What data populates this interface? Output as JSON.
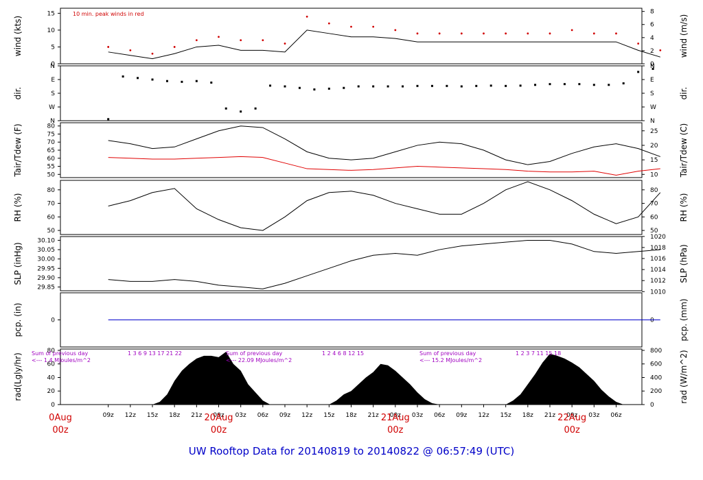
{
  "title": "UW Rooftop Data for 20140819  to  20140822 @ 06:57:49  (UTC)",
  "colors": {
    "line": "#000000",
    "peak": "#d00000",
    "dew": "#e00000",
    "precip": "#0000cc",
    "annot": "#a000c0",
    "day": "#d00000",
    "title": "#0000c8"
  },
  "x_axis": {
    "tick_labels": [
      "09z",
      "12z",
      "15z",
      "18z",
      "21z",
      "00z",
      "03z",
      "06z",
      "09z",
      "12z",
      "15z",
      "18z",
      "21z",
      "00z",
      "03z",
      "06z",
      "09z",
      "12z",
      "15z",
      "18z",
      "21z",
      "00z",
      "03z",
      "06z"
    ],
    "day_labels": [
      {
        "day": "0Aug",
        "hour": "00z"
      },
      {
        "day": "20Aug",
        "hour": "00z"
      },
      {
        "day": "21Aug",
        "hour": "00z"
      },
      {
        "day": "22Aug",
        "hour": "00z"
      }
    ]
  },
  "chart_data": [
    {
      "id": "wind",
      "type": "line",
      "ylabel_left": "wind (kts)",
      "ylabel_right": "wind (m/s)",
      "yticks_left": [
        "0",
        "5",
        "10",
        "15"
      ],
      "yticks_right": [
        "0",
        "2",
        "4",
        "6",
        "8"
      ],
      "ylim": [
        0,
        16.5
      ],
      "annotation": "10 min. peak winds in red",
      "x_hours": [
        0,
        3,
        6,
        9,
        12,
        15,
        18,
        21,
        24,
        27,
        30,
        33,
        36,
        39,
        42,
        45,
        48,
        51,
        54,
        57,
        60,
        63,
        66,
        69,
        72,
        75
      ],
      "series": [
        {
          "name": "wind",
          "values": [
            3.5,
            2.5,
            1.5,
            3,
            5,
            5.5,
            4,
            4,
            3.5,
            10,
            9,
            8,
            8,
            7.5,
            6.5,
            6.5,
            6.5,
            6.5,
            6.5,
            6.5,
            6.5,
            6.5,
            6.5,
            6.5,
            4,
            2
          ]
        },
        {
          "name": "10 min. peak winds",
          "values": [
            5,
            4,
            3,
            5,
            7,
            8,
            7,
            7,
            6,
            14,
            12,
            11,
            11,
            10,
            9,
            9,
            9,
            9,
            9,
            9,
            9,
            10,
            9,
            9,
            6,
            4
          ]
        }
      ]
    },
    {
      "id": "dir",
      "type": "scatter",
      "ylabel_left": "dir.",
      "ylabel_right": "dir.",
      "yticks_left": [
        "N",
        "E",
        "S",
        "W",
        "N"
      ],
      "yticks_right": [
        "N",
        "E",
        "S",
        "W",
        "N"
      ],
      "ylim": [
        0,
        360
      ],
      "x_hours": [
        0,
        2,
        4,
        6,
        8,
        10,
        12,
        14,
        16,
        18,
        20,
        22,
        24,
        26,
        28,
        30,
        32,
        34,
        36,
        38,
        40,
        42,
        44,
        46,
        48,
        50,
        52,
        54,
        56,
        58,
        60,
        62,
        64,
        66,
        68,
        70,
        72,
        74
      ],
      "values": [
        10,
        290,
        280,
        270,
        260,
        255,
        260,
        250,
        80,
        60,
        80,
        230,
        225,
        215,
        205,
        210,
        215,
        225,
        225,
        225,
        225,
        228,
        228,
        228,
        225,
        228,
        230,
        228,
        230,
        235,
        240,
        240,
        240,
        235,
        235,
        245,
        320,
        340
      ]
    },
    {
      "id": "temp",
      "type": "line",
      "ylabel_left": "Tair/Tdew (F)",
      "ylabel_right": "Tair/Tdew (C)",
      "yticks_left": [
        "50",
        "55",
        "60",
        "65",
        "70",
        "75",
        "80"
      ],
      "yticks_right": [
        "10",
        "15",
        "20",
        "25"
      ],
      "ylim": [
        48,
        82
      ],
      "x_hours": [
        0,
        3,
        6,
        9,
        12,
        15,
        18,
        21,
        24,
        27,
        30,
        33,
        36,
        39,
        42,
        45,
        48,
        51,
        54,
        57,
        60,
        63,
        66,
        69,
        72,
        75
      ],
      "series": [
        {
          "name": "Tair",
          "values": [
            71,
            69,
            66,
            67,
            72,
            77,
            80,
            79,
            72,
            64,
            60,
            59,
            60,
            64,
            68,
            70,
            69,
            65,
            59,
            56,
            58,
            63,
            67,
            69,
            66,
            61
          ]
        },
        {
          "name": "Tdew",
          "values": [
            60.5,
            60,
            59.5,
            59.5,
            60,
            60.5,
            61,
            60.5,
            57,
            53.5,
            53,
            52.5,
            53,
            54,
            55,
            54.5,
            54,
            53.5,
            53,
            52,
            51.5,
            51.5,
            52,
            49.5,
            52,
            53.5
          ]
        }
      ]
    },
    {
      "id": "rh",
      "type": "line",
      "ylabel_left": "RH (%)",
      "ylabel_right": "RH (%)",
      "yticks_left": [
        "50",
        "60",
        "70",
        "80"
      ],
      "yticks_right": [
        "50",
        "60",
        "70",
        "80"
      ],
      "ylim": [
        47,
        87
      ],
      "x_hours": [
        0,
        3,
        6,
        9,
        12,
        15,
        18,
        21,
        24,
        27,
        30,
        33,
        36,
        39,
        42,
        45,
        48,
        51,
        54,
        57,
        60,
        63,
        66,
        69,
        72,
        75
      ],
      "values": [
        68,
        72,
        78,
        81,
        66,
        58,
        52,
        50,
        60,
        72,
        78,
        79,
        76,
        70,
        66,
        62,
        62,
        70,
        80,
        86,
        80,
        72,
        62,
        55,
        60,
        78
      ]
    },
    {
      "id": "slp",
      "type": "line",
      "ylabel_left": "SLP (inHg)",
      "ylabel_right": "SLP (hPa)",
      "yticks_left": [
        "29.85",
        "29.90",
        "29.95",
        "30.00",
        "30.05",
        "30.10"
      ],
      "yticks_right": [
        "1010",
        "1012",
        "1014",
        "1016",
        "1018",
        "1020"
      ],
      "ylim": [
        29.83,
        30.12
      ],
      "x_hours": [
        0,
        3,
        6,
        9,
        12,
        15,
        18,
        21,
        24,
        27,
        30,
        33,
        36,
        39,
        42,
        45,
        48,
        51,
        54,
        57,
        60,
        63,
        66,
        69,
        72,
        75
      ],
      "values": [
        29.89,
        29.88,
        29.88,
        29.89,
        29.88,
        29.86,
        29.85,
        29.84,
        29.87,
        29.91,
        29.95,
        29.99,
        30.02,
        30.03,
        30.02,
        30.05,
        30.07,
        30.08,
        30.09,
        30.1,
        30.1,
        30.08,
        30.04,
        30.03,
        30.04,
        30.05
      ]
    },
    {
      "id": "pcp",
      "type": "line",
      "ylabel_left": "pcp. (in)",
      "ylabel_right": "pcp. (mm)",
      "yticks_left": [
        "0"
      ],
      "yticks_right": [
        "0"
      ],
      "ylim": [
        -1,
        1
      ],
      "x_hours": [
        0,
        75
      ],
      "values": [
        0,
        0
      ]
    },
    {
      "id": "rad",
      "type": "area",
      "ylabel_left": "rad(Lgly/hr)",
      "ylabel_right": "rad (W/m^2)",
      "yticks_left": [
        "0",
        "20",
        "40",
        "60",
        "80"
      ],
      "yticks_right": [
        "0",
        "200",
        "400",
        "600",
        "800"
      ],
      "ylim": [
        0,
        82
      ],
      "annotations": [
        {
          "text": "Sum of previous day",
          "text2": "<--- 1.4 MJoules/m^2",
          "hour_labels": "1  3  6  9  13  17  21  22"
        },
        {
          "text": "Sum of previous day",
          "text2": "<--- 22.09 MJoules/m^2",
          "hour_labels": "1  2  4  6  8  12  15"
        },
        {
          "text": "Sum of previous day",
          "text2": "<--- 15.2 MJoules/m^2",
          "hour_labels": "1  2  3  7  11  15  18"
        }
      ],
      "x_hours": [
        0,
        6,
        7,
        8,
        9,
        10,
        11,
        12,
        13,
        14,
        15,
        16,
        17,
        18,
        19,
        20,
        21,
        22,
        30,
        31,
        32,
        33,
        34,
        35,
        36,
        37,
        38,
        39,
        40,
        41,
        42,
        43,
        44,
        45,
        46,
        54,
        55,
        56,
        57,
        58,
        59,
        60,
        61,
        62,
        63,
        64,
        65,
        66,
        67,
        68,
        69,
        70,
        75
      ],
      "values": [
        0,
        0,
        4,
        15,
        35,
        50,
        60,
        68,
        72,
        72,
        70,
        78,
        60,
        50,
        30,
        18,
        6,
        0,
        0,
        6,
        15,
        20,
        30,
        40,
        48,
        60,
        58,
        50,
        40,
        30,
        18,
        8,
        2,
        0,
        0,
        0,
        6,
        15,
        30,
        45,
        62,
        75,
        72,
        68,
        62,
        55,
        45,
        35,
        22,
        12,
        4,
        0,
        0
      ]
    }
  ]
}
